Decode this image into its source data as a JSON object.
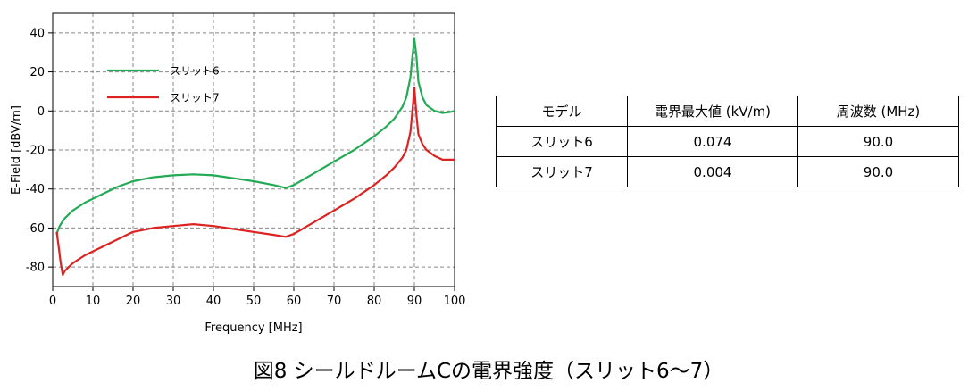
{
  "chart_data": {
    "type": "line",
    "xlabel": "Frequency [MHz]",
    "ylabel": "E-Field [dBV/m]",
    "xlim": [
      0,
      100
    ],
    "ylim": [
      -90,
      50
    ],
    "xticks": [
      0,
      10,
      20,
      30,
      40,
      50,
      60,
      70,
      80,
      90,
      100
    ],
    "yticks": [
      40,
      20,
      0,
      -20,
      -40,
      -60,
      -80
    ],
    "grid": true,
    "legend_position": "top-left",
    "series": [
      {
        "name": "スリット6",
        "color": "#22aa55",
        "x": [
          1,
          1.5,
          2,
          3,
          5,
          8,
          12,
          16,
          20,
          25,
          30,
          35,
          40,
          45,
          50,
          55,
          58,
          60,
          65,
          70,
          75,
          80,
          83,
          85,
          87,
          88,
          89,
          89.5,
          90,
          90.5,
          91,
          92,
          93,
          95,
          97,
          99,
          100
        ],
        "y": [
          -63,
          -60,
          -58,
          -55,
          -51,
          -47,
          -43,
          -39,
          -36,
          -34,
          -33,
          -32.5,
          -33,
          -34.5,
          -36,
          -38,
          -39.5,
          -38,
          -32,
          -26,
          -20,
          -13,
          -8,
          -4,
          2,
          7,
          17,
          28,
          37,
          28,
          15,
          7,
          3,
          0,
          -1,
          -0.5,
          0
        ]
      },
      {
        "name": "スリット7",
        "color": "#dd2222",
        "x": [
          1,
          1.5,
          2,
          2.5,
          3,
          4,
          5,
          8,
          12,
          16,
          20,
          25,
          30,
          35,
          40,
          45,
          50,
          55,
          58,
          60,
          65,
          70,
          75,
          80,
          83,
          85,
          87,
          88,
          89,
          89.5,
          90,
          90.5,
          91,
          92,
          93,
          95,
          97,
          99,
          100
        ],
        "y": [
          -62,
          -70,
          -78,
          -84,
          -82,
          -80,
          -78,
          -74,
          -70,
          -66,
          -62,
          -60,
          -59,
          -58,
          -59,
          -60.5,
          -62,
          -63.5,
          -64.5,
          -63,
          -57,
          -51,
          -45,
          -38,
          -33,
          -29,
          -24,
          -20,
          -11,
          0,
          12,
          -2,
          -12,
          -17,
          -20,
          -23,
          -25,
          -25,
          -25
        ]
      }
    ]
  },
  "table": {
    "headers": [
      "モデル",
      "電界最大値 (kV/m)",
      "周波数 (MHz)"
    ],
    "rows": [
      [
        "スリット6",
        "0.074",
        "90.0"
      ],
      [
        "スリット7",
        "0.004",
        "90.0"
      ]
    ]
  },
  "caption": "図8 シールドルームCの電界強度（スリット6～7）"
}
